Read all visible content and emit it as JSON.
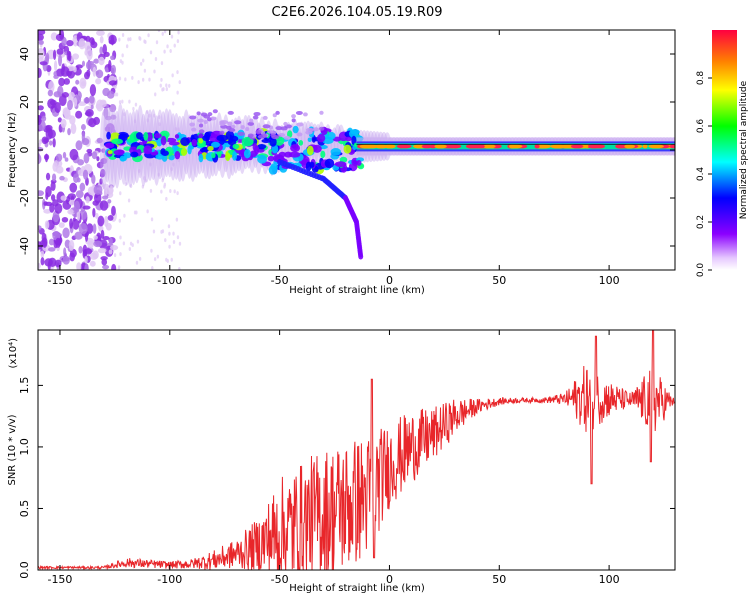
{
  "title": "C2E6.2026.104.05.19.R09",
  "chart_data": [
    {
      "type": "heatmap",
      "xlabel": "Height of straight line (km)",
      "ylabel": "Frequency (Hz)",
      "xlim": [
        -160,
        130
      ],
      "ylim": [
        -50,
        50
      ],
      "xticks": [
        -150,
        -100,
        -50,
        0,
        50,
        100
      ],
      "yticks": [
        -40,
        -20,
        0,
        20,
        40
      ],
      "colorbar": {
        "label": "Normalized spectral amplitude",
        "range": [
          0,
          1
        ],
        "ticks": [
          "0.0",
          "0.2",
          "0.4",
          "0.6",
          "0.8"
        ],
        "colors": [
          "#ffffff",
          "#8b00ff",
          "#0000ff",
          "#00ffff",
          "#00ff00",
          "#ffff00",
          "#ff8000",
          "#ff0000"
        ]
      },
      "features": {
        "main_band_center_hz": 1.5,
        "main_band_start_km": -130,
        "main_band_end_km": 130,
        "noise_region_km": [
          -160,
          -125
        ],
        "descending_branch": [
          [
            -50,
            -5
          ],
          [
            -30,
            -12
          ],
          [
            -20,
            -20
          ],
          [
            -15,
            -30
          ],
          [
            -13,
            -45
          ]
        ]
      }
    },
    {
      "type": "line",
      "xlabel": "Height of straight line (km)",
      "ylabel": "SNR (10 * v/v)",
      "y_multiplier": "(x10⁴)",
      "xlim": [
        -160,
        130
      ],
      "ylim": [
        0,
        1.95
      ],
      "xticks": [
        -150,
        -100,
        -50,
        0,
        50,
        100
      ],
      "yticks": [
        "0.0",
        "0.5",
        "1.0",
        "1.5"
      ],
      "color": "#e8262a",
      "envelope": {
        "x": [
          -160,
          -130,
          -120,
          -100,
          -90,
          -80,
          -70,
          -60,
          -50,
          -40,
          -30,
          -20,
          -10,
          0,
          10,
          20,
          30,
          40,
          50,
          60,
          70,
          80,
          90,
          100,
          110,
          120,
          130
        ],
        "mean": [
          0.02,
          0.02,
          0.06,
          0.04,
          0.05,
          0.08,
          0.13,
          0.2,
          0.3,
          0.38,
          0.45,
          0.52,
          0.6,
          0.85,
          1.0,
          1.1,
          1.25,
          1.33,
          1.37,
          1.38,
          1.38,
          1.39,
          1.4,
          1.39,
          1.38,
          1.37,
          1.37
        ],
        "noise": [
          0.01,
          0.01,
          0.04,
          0.03,
          0.04,
          0.08,
          0.12,
          0.22,
          0.45,
          0.5,
          0.55,
          0.55,
          0.5,
          0.35,
          0.3,
          0.22,
          0.15,
          0.06,
          0.03,
          0.02,
          0.02,
          0.05,
          0.3,
          0.15,
          0.06,
          0.3,
          0.01
        ]
      }
    }
  ]
}
